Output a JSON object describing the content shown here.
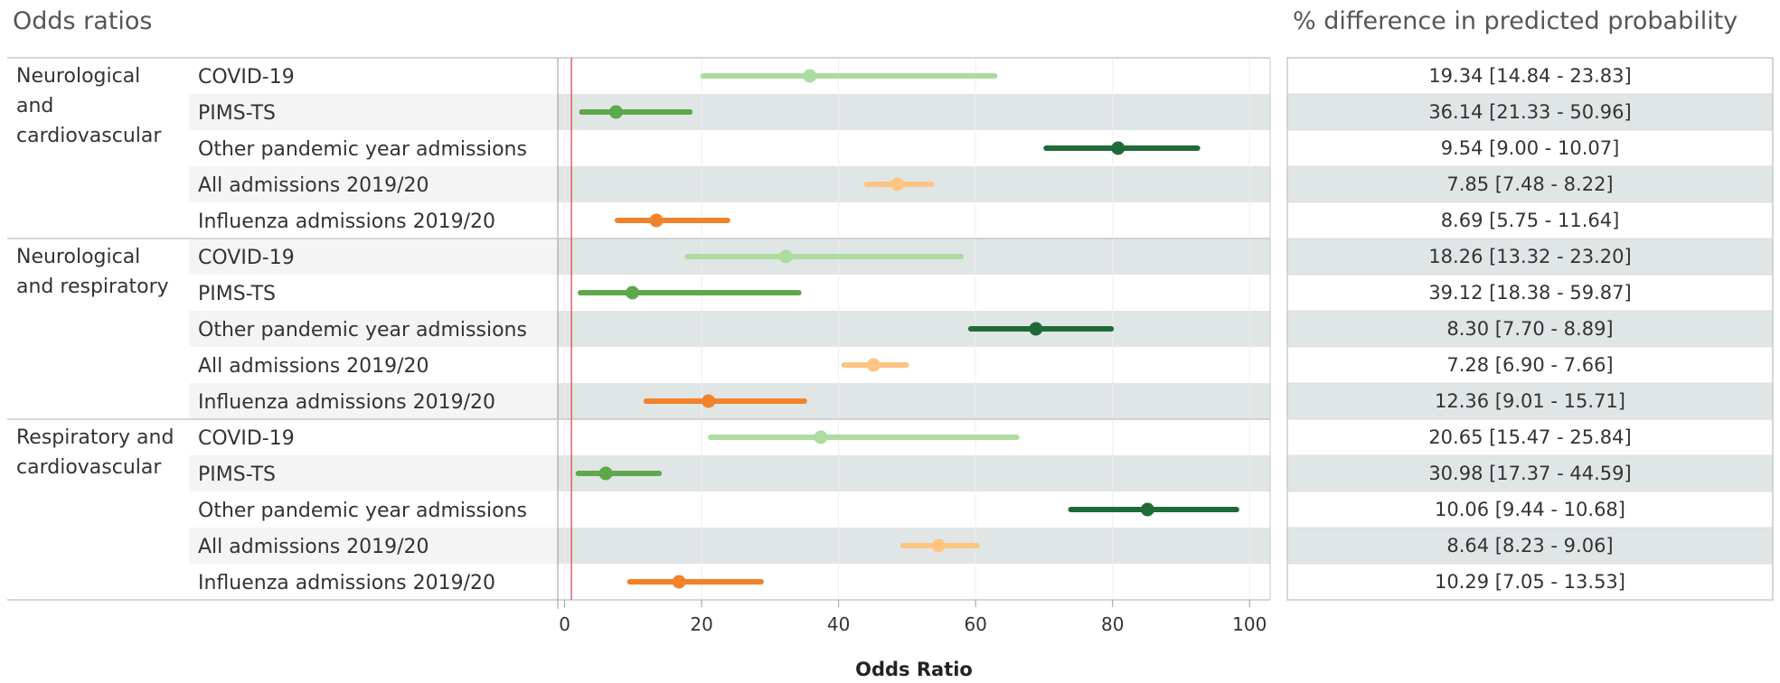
{
  "titles": {
    "left": "Odds ratios",
    "right": "% difference in predicted probability"
  },
  "colors": {
    "covid": "#acdc9f",
    "pims": "#5ea84c",
    "other_pandemic": "#1f6b38",
    "all_admissions": "#fdc581",
    "influenza": "#f2822a",
    "reference_line": "#e06060",
    "band": "#e0e5e6"
  },
  "chart_data": {
    "type": "forest",
    "title": "Odds ratios",
    "xlabel": "Odds Ratio",
    "xlim": [
      -1,
      103
    ],
    "xticks": [
      0,
      20,
      40,
      60,
      80,
      100
    ],
    "reference_line": 1,
    "table_title": "% difference in predicted probability",
    "groups": [
      {
        "label": [
          "Neurological",
          "and",
          "cardiovascular"
        ],
        "rows": [
          {
            "label": "COVID-19",
            "or": 35.8,
            "lo": 20.2,
            "hi": 62.8,
            "pct": "19.34 [14.84 - 23.83]",
            "color_key": "covid"
          },
          {
            "label": "PIMS-TS",
            "or": 7.5,
            "lo": 2.5,
            "hi": 18.3,
            "pct": "36.14 [21.33 - 50.96]",
            "color_key": "pims"
          },
          {
            "label": "Other pandemic year admissions",
            "or": 80.8,
            "lo": 70.3,
            "hi": 92.4,
            "pct": "9.54 [9.00 - 10.07]",
            "color_key": "other_pandemic"
          },
          {
            "label": "All admissions 2019/20",
            "or": 48.6,
            "lo": 44.1,
            "hi": 53.6,
            "pct": "7.85 [7.48 - 8.22]",
            "color_key": "all_admissions"
          },
          {
            "label": "Influenza admissions 2019/20",
            "or": 13.4,
            "lo": 7.7,
            "hi": 23.8,
            "pct": "8.69 [5.75 - 11.64]",
            "color_key": "influenza"
          }
        ]
      },
      {
        "label": [
          "Neurological",
          "and respiratory"
        ],
        "rows": [
          {
            "label": "COVID-19",
            "or": 32.3,
            "lo": 17.9,
            "hi": 57.9,
            "pct": "18.26 [13.32 - 23.20]",
            "color_key": "covid"
          },
          {
            "label": "PIMS-TS",
            "or": 9.9,
            "lo": 2.3,
            "hi": 34.2,
            "pct": "39.12 [18.38 - 59.87]",
            "color_key": "pims"
          },
          {
            "label": "Other pandemic year admissions",
            "or": 68.8,
            "lo": 59.3,
            "hi": 79.8,
            "pct": "8.30 [7.70 - 8.89]",
            "color_key": "other_pandemic"
          },
          {
            "label": "All admissions 2019/20",
            "or": 45.1,
            "lo": 40.8,
            "hi": 49.9,
            "pct": "7.28 [6.90 - 7.66]",
            "color_key": "all_admissions"
          },
          {
            "label": "Influenza admissions 2019/20",
            "or": 21.0,
            "lo": 11.9,
            "hi": 35.0,
            "pct": "12.36 [9.01 - 15.71]",
            "color_key": "influenza"
          }
        ]
      },
      {
        "label": [
          "Respiratory and",
          "cardiovascular"
        ],
        "rows": [
          {
            "label": "COVID-19",
            "or": 37.4,
            "lo": 21.3,
            "hi": 66.0,
            "pct": "20.65 [15.47 - 25.84]",
            "color_key": "covid"
          },
          {
            "label": "PIMS-TS",
            "or": 6.0,
            "lo": 2.0,
            "hi": 13.8,
            "pct": "30.98 [17.37 - 44.59]",
            "color_key": "pims"
          },
          {
            "label": "Other pandemic year admissions",
            "or": 85.1,
            "lo": 73.9,
            "hi": 98.1,
            "pct": "10.06 [9.44 - 10.68]",
            "color_key": "other_pandemic"
          },
          {
            "label": "All admissions 2019/20",
            "or": 54.6,
            "lo": 49.4,
            "hi": 60.2,
            "pct": "8.64 [8.23 - 9.06]",
            "color_key": "all_admissions"
          },
          {
            "label": "Influenza admissions 2019/20",
            "or": 16.7,
            "lo": 9.5,
            "hi": 28.7,
            "pct": "10.29 [7.05 - 13.53]",
            "color_key": "influenza"
          }
        ]
      }
    ]
  }
}
